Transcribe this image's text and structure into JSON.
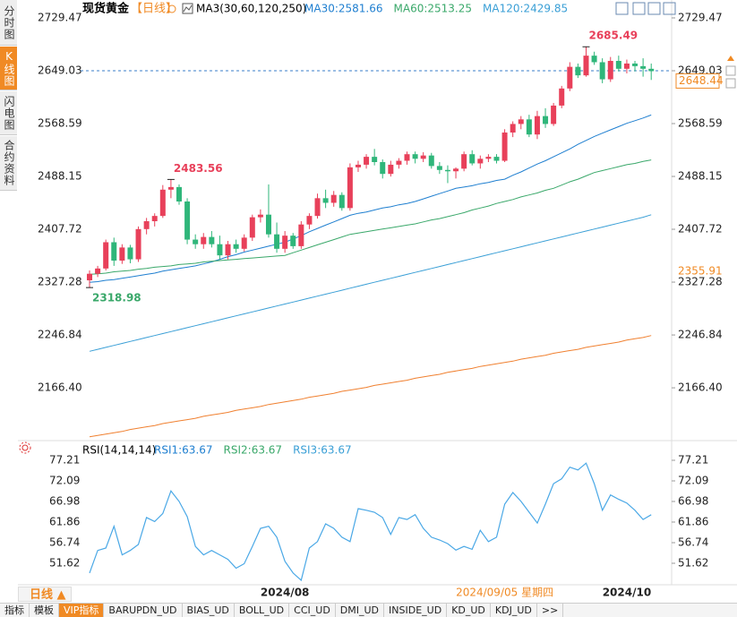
{
  "header": {
    "title": "现货黄金",
    "period": "【日线】",
    "indicator": "MA3(30,60,120,250)"
  },
  "sidebar": [
    "分时图",
    "K线图",
    "闪电图",
    "合约资料"
  ],
  "period_button": "日线",
  "toolbar": [
    "指标",
    "模板",
    "VIP指标",
    "BARUPDN_UD",
    "BIAS_UD",
    "BOLL_UD",
    "CCI_UD",
    "DMI_UD",
    "INSIDE_UD",
    "KD_UD",
    "KDJ_UD",
    ">>"
  ],
  "chart_data": [
    {
      "type": "candlestick",
      "up_color": "#e8405a",
      "down_color": "#2fb67a",
      "categories": [
        null,
        null,
        null,
        null,
        null,
        null,
        null,
        null,
        null,
        null,
        null,
        null,
        null,
        null,
        null,
        null,
        null,
        null,
        null,
        null,
        null,
        null,
        null,
        null,
        "2024/08",
        null,
        null,
        null,
        null,
        null,
        null,
        null,
        null,
        null,
        null,
        null,
        null,
        null,
        null,
        null,
        null,
        null,
        null,
        null,
        null,
        null,
        null,
        null,
        null,
        null,
        null,
        "2024/09/05 星期四",
        null,
        null,
        null,
        null,
        null,
        null,
        null,
        null,
        null,
        null,
        null,
        null,
        null,
        null,
        "2024/10",
        null,
        null,
        null
      ],
      "open": [
        2330,
        2340,
        2348,
        2388,
        2360,
        2380,
        2362,
        2408,
        2420,
        2428,
        2468,
        2472,
        2450,
        2392,
        2385,
        2396,
        2385,
        2368,
        2385,
        2378,
        2395,
        2426,
        2430,
        2400,
        2378,
        2398,
        2382,
        2415,
        2428,
        2455,
        2448,
        2460,
        2440,
        2502,
        2506,
        2518,
        2510,
        2492,
        2506,
        2512,
        2522,
        2515,
        2520,
        2504,
        2498,
        2496,
        2500,
        2522,
        2508,
        2515,
        2518,
        2512,
        2555,
        2568,
        2575,
        2552,
        2580,
        2568,
        2596,
        2622,
        2655,
        2642,
        2672,
        2662,
        2636,
        2664,
        2652,
        2660,
        2656,
        2652
      ],
      "high": [
        2345,
        2352,
        2392,
        2395,
        2385,
        2384,
        2412,
        2425,
        2432,
        2475,
        2483.56,
        2476,
        2455,
        2400,
        2402,
        2405,
        2398,
        2390,
        2392,
        2400,
        2430,
        2438,
        2476,
        2418,
        2405,
        2402,
        2420,
        2432,
        2462,
        2468,
        2466,
        2464,
        2508,
        2512,
        2522,
        2530,
        2514,
        2512,
        2516,
        2526,
        2526,
        2525,
        2524,
        2510,
        2505,
        2502,
        2526,
        2528,
        2520,
        2522,
        2522,
        2560,
        2572,
        2580,
        2582,
        2588,
        2592,
        2600,
        2626,
        2662,
        2660,
        2685.49,
        2678,
        2668,
        2670,
        2672,
        2666,
        2664,
        2668,
        2660
      ],
      "low": [
        2318.98,
        2335,
        2345,
        2352,
        2355,
        2356,
        2358,
        2400,
        2412,
        2425,
        2455,
        2445,
        2385,
        2378,
        2378,
        2380,
        2362,
        2362,
        2372,
        2374,
        2390,
        2418,
        2395,
        2372,
        2372,
        2378,
        2378,
        2408,
        2424,
        2440,
        2442,
        2436,
        2436,
        2495,
        2500,
        2505,
        2485,
        2488,
        2500,
        2506,
        2508,
        2510,
        2500,
        2492,
        2478,
        2485,
        2496,
        2505,
        2500,
        2510,
        2508,
        2510,
        2548,
        2560,
        2548,
        2545,
        2562,
        2565,
        2592,
        2618,
        2638,
        2640,
        2658,
        2630,
        2632,
        2648,
        2645,
        2648,
        2640,
        2635
      ],
      "close": [
        2340,
        2348,
        2388,
        2360,
        2380,
        2362,
        2408,
        2420,
        2428,
        2468,
        2472,
        2450,
        2392,
        2385,
        2396,
        2385,
        2368,
        2385,
        2378,
        2395,
        2426,
        2430,
        2400,
        2378,
        2398,
        2382,
        2415,
        2428,
        2455,
        2448,
        2460,
        2440,
        2502,
        2506,
        2518,
        2510,
        2492,
        2506,
        2512,
        2522,
        2515,
        2520,
        2504,
        2498,
        2496,
        2500,
        2522,
        2508,
        2515,
        2518,
        2512,
        2555,
        2568,
        2575,
        2552,
        2580,
        2568,
        2596,
        2622,
        2655,
        2642,
        2672,
        2662,
        2636,
        2664,
        2652,
        2660,
        2656,
        2652,
        2648.44
      ],
      "series": [
        {
          "name": "MA30:2581.66",
          "color": "#1f7fd0",
          "values": [
            2327,
            2328,
            2330,
            2331,
            2333,
            2335,
            2337,
            2339,
            2341,
            2344,
            2346,
            2348,
            2350,
            2352,
            2355,
            2358,
            2362,
            2366,
            2369,
            2373,
            2376,
            2379,
            2382,
            2385,
            2388,
            2393,
            2398,
            2404,
            2409,
            2414,
            2419,
            2424,
            2429,
            2432,
            2434,
            2437,
            2440,
            2442,
            2445,
            2447,
            2450,
            2454,
            2458,
            2462,
            2466,
            2470,
            2472,
            2474,
            2477,
            2479,
            2482,
            2484,
            2490,
            2495,
            2501,
            2507,
            2512,
            2518,
            2524,
            2530,
            2537,
            2543,
            2549,
            2554,
            2559,
            2564,
            2569,
            2573,
            2577,
            2581.66
          ]
        },
        {
          "name": "MA60:2513.25",
          "color": "#3aa86a",
          "values": [
            2339,
            2340,
            2341,
            2343,
            2344,
            2345,
            2347,
            2348,
            2350,
            2351,
            2352,
            2354,
            2355,
            2356,
            2358,
            2359,
            2360,
            2361,
            2362,
            2363,
            2364,
            2365,
            2366,
            2367,
            2368,
            2372,
            2376,
            2380,
            2384,
            2388,
            2392,
            2396,
            2400,
            2402,
            2404,
            2406,
            2408,
            2410,
            2412,
            2414,
            2416,
            2419,
            2422,
            2424,
            2427,
            2430,
            2433,
            2437,
            2440,
            2443,
            2447,
            2450,
            2453,
            2457,
            2460,
            2463,
            2467,
            2470,
            2475,
            2480,
            2484,
            2489,
            2494,
            2497,
            2500,
            2503,
            2506,
            2508,
            2511,
            2513.25
          ]
        },
        {
          "name": "MA120:2429.85",
          "color": "#3a9fd6",
          "values": [
            2222,
            2225,
            2228,
            2231,
            2234,
            2237,
            2240,
            2243,
            2246,
            2249,
            2252,
            2255,
            2258,
            2261,
            2264,
            2267,
            2270,
            2273,
            2276,
            2279,
            2282,
            2285,
            2288,
            2291,
            2294,
            2297,
            2300,
            2303,
            2306,
            2309,
            2312,
            2315,
            2318,
            2321,
            2324,
            2327,
            2330,
            2333,
            2336,
            2339,
            2342,
            2345,
            2348,
            2351,
            2354,
            2357,
            2360,
            2363,
            2366,
            2369,
            2372,
            2375,
            2378,
            2381,
            2384,
            2387,
            2390,
            2393,
            2396,
            2399,
            2402,
            2405,
            2408,
            2411,
            2414,
            2417,
            2420,
            2423,
            2426,
            2429.85
          ]
        },
        {
          "color": "#f08030",
          "values": [
            2092,
            2094,
            2096,
            2098,
            2100,
            2103,
            2105,
            2107,
            2109,
            2112,
            2114,
            2116,
            2118,
            2120,
            2123,
            2125,
            2127,
            2129,
            2132,
            2134,
            2136,
            2138,
            2141,
            2143,
            2145,
            2147,
            2149,
            2152,
            2154,
            2156,
            2158,
            2161,
            2163,
            2165,
            2167,
            2170,
            2172,
            2174,
            2176,
            2178,
            2181,
            2183,
            2185,
            2187,
            2190,
            2192,
            2194,
            2196,
            2199,
            2201,
            2203,
            2205,
            2207,
            2210,
            2212,
            2214,
            2216,
            2219,
            2221,
            2223,
            2225,
            2228,
            2230,
            2232,
            2234,
            2236,
            2239,
            2241,
            2243,
            2246
          ]
        }
      ],
      "ylim": [
        2088.8,
        2756.7
      ],
      "yticks": [
        {
          "value": 2166.4,
          "label": "2166.40"
        },
        2246.84,
        2327.28,
        2407.72,
        2488.15,
        2568.59,
        2649.03,
        2729.47
      ],
      "reference_line": 2649.03,
      "price_marker": 2355.91
    },
    {
      "type": "line",
      "title": "RSI(14,14,14)",
      "color": "#4aa8e6",
      "legend": [
        {
          "name": "RSI1:63.67",
          "color": "#1f7fd0"
        },
        {
          "name": "RSI2:63.67",
          "color": "#3aa86a"
        },
        {
          "name": "RSI3:63.67",
          "color": "#3a9fd6"
        }
      ],
      "values": [
        49.2,
        54.8,
        55.4,
        60.8,
        53.7,
        54.8,
        56.3,
        63,
        62,
        64,
        69.6,
        67,
        63.2,
        55.8,
        53.7,
        54.8,
        53.7,
        52.6,
        50.4,
        51.5,
        55.8,
        60.3,
        60.8,
        58.1,
        52.1,
        49.2,
        47.4,
        55.4,
        57,
        61.4,
        60.3,
        58.1,
        57,
        65.2,
        64.8,
        64.3,
        63,
        58.8,
        63,
        62.5,
        63.7,
        60.3,
        58.1,
        57.4,
        56.5,
        54.9,
        55.8,
        55.1,
        59.8,
        57,
        58.1,
        66.3,
        69.2,
        67,
        64.3,
        61.6,
        66.3,
        71.4,
        72.6,
        75.5,
        74.8,
        76.5,
        71.4,
        64.8,
        68.6,
        67.5,
        66.6,
        64.8,
        62.5,
        63.67
      ],
      "ylim": [
        46.5,
        81.44
      ],
      "yticks": [
        51.62,
        56.74,
        61.86,
        66.98,
        72.09,
        77.21
      ]
    }
  ]
}
